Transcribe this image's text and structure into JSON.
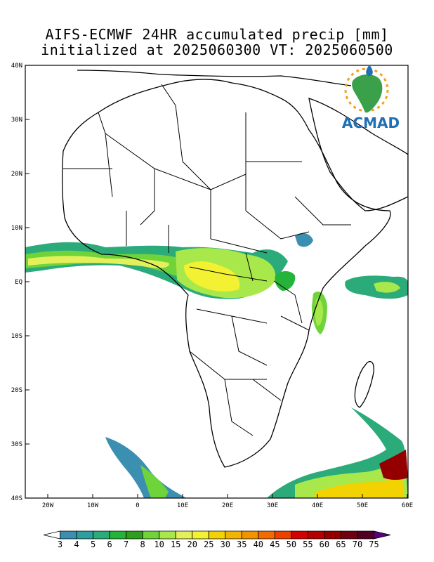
{
  "title": {
    "line1": "AIFS-ECMWF 24HR accumulated precip [mm]",
    "line2": "initialized at 2025060300 VT: 2025060500"
  },
  "map": {
    "y_ticks": [
      "40N",
      "30N",
      "20N",
      "10N",
      "EQ",
      "10S",
      "20S",
      "30S",
      "40S"
    ],
    "x_ticks": [
      "20W",
      "10W",
      "0",
      "10E",
      "20E",
      "30E",
      "40E",
      "50E",
      "60E"
    ],
    "lon_range": [
      -25,
      60
    ],
    "lat_range": [
      -40,
      40
    ]
  },
  "logo": {
    "text": "ACMAD",
    "icon": "africa-drop-logo"
  },
  "colorbar": {
    "labels": [
      "3",
      "4",
      "5",
      "6",
      "7",
      "8",
      "10",
      "15",
      "20",
      "25",
      "30",
      "35",
      "40",
      "45",
      "50",
      "55",
      "60",
      "65",
      "70",
      "75"
    ],
    "colors": [
      "#ffffff",
      "#3b8fb0",
      "#2f9e9e",
      "#2bab7a",
      "#25b43a",
      "#2e9e1e",
      "#6fd33a",
      "#a9e84a",
      "#e4f05a",
      "#f2f232",
      "#f2d200",
      "#f2b400",
      "#f29400",
      "#f26a00",
      "#ee4000",
      "#d40000",
      "#b40000",
      "#940000",
      "#6e0010",
      "#500020",
      "#5a007a"
    ]
  }
}
